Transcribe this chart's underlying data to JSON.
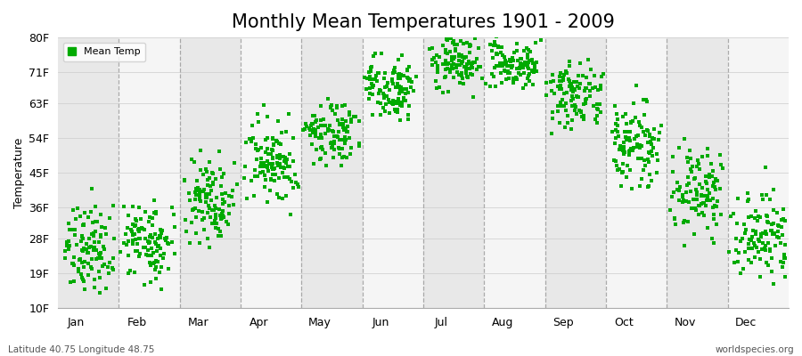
{
  "title": "Monthly Mean Temperatures 1901 - 2009",
  "ylabel": "Temperature",
  "xlabel_labels": [
    "Jan",
    "Feb",
    "Mar",
    "Apr",
    "May",
    "Jun",
    "Jul",
    "Aug",
    "Sep",
    "Oct",
    "Nov",
    "Dec"
  ],
  "ytick_values": [
    10,
    19,
    28,
    36,
    45,
    54,
    63,
    71,
    80
  ],
  "ytick_labels": [
    "10F",
    "19F",
    "28F",
    "36F",
    "45F",
    "54F",
    "63F",
    "71F",
    "80F"
  ],
  "ylim": [
    10,
    80
  ],
  "dot_color": "#00aa00",
  "dot_size": 12,
  "background_color": "#ffffff",
  "plot_bg_color": "#f0f0f0",
  "band_color_light": "#f5f5f5",
  "band_color_dark": "#e8e8e8",
  "dashed_line_color": "#999999",
  "title_fontsize": 15,
  "axis_label_fontsize": 9,
  "tick_label_fontsize": 9,
  "bottom_left_text": "Latitude 40.75 Longitude 48.75",
  "bottom_right_text": "worldspecies.org",
  "legend_label": "Mean Temp",
  "month_mean_temps_f": [
    25.5,
    27.0,
    36.5,
    47.5,
    55.5,
    67.5,
    73.5,
    73.0,
    65.0,
    52.0,
    40.0,
    28.5
  ],
  "month_spread_f": [
    5.0,
    5.0,
    5.5,
    5.5,
    4.0,
    4.0,
    3.0,
    3.0,
    4.5,
    5.0,
    5.5,
    5.5
  ],
  "num_years": 109,
  "seed": 42
}
